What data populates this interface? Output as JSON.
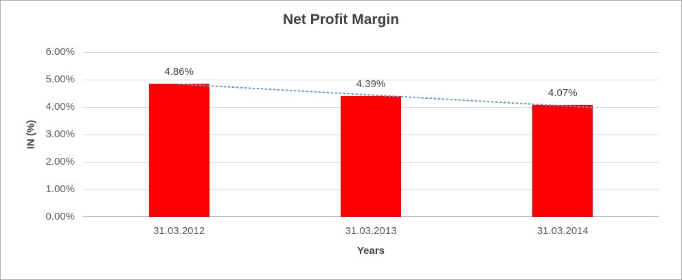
{
  "chart_data": {
    "type": "bar",
    "title": "Net Profit Margin",
    "xlabel": "Years",
    "ylabel": "IN (%)",
    "categories": [
      "31.03.2012",
      "31.03.2013",
      "31.03.2014"
    ],
    "values": [
      4.86,
      4.39,
      4.07
    ],
    "data_labels": [
      "4.86%",
      "4.39%",
      "4.07%"
    ],
    "y_ticks": [
      "6.00%",
      "5.00%",
      "4.00%",
      "3.00%",
      "2.00%",
      "1.00%",
      "0.00%"
    ],
    "ylim": [
      0,
      6
    ],
    "grid": true,
    "legend": "none",
    "bar_color": "#ff0000",
    "trendline": "linear-dotted",
    "trendline_color": "#5b9bd5"
  }
}
